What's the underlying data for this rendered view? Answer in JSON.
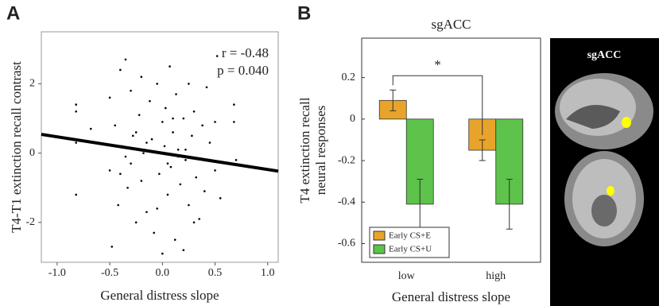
{
  "chart_data": [
    {
      "type": "scatter",
      "panel_label": "A",
      "x_label": "General distress slope",
      "y_label": "T4-T1 extinction recall contrast",
      "annotations": [
        "r = -0.48",
        "p = 0.040"
      ],
      "x": [
        -0.82,
        -0.82,
        -0.82,
        -0.82,
        -0.68,
        -0.5,
        -0.5,
        -0.48,
        -0.45,
        -0.42,
        -0.4,
        -0.38,
        -0.35,
        -0.33,
        -0.3,
        -0.3,
        -0.28,
        -0.25,
        -0.22,
        -0.2,
        -0.2,
        -0.18,
        -0.15,
        -0.12,
        -0.1,
        -0.08,
        -0.05,
        -0.03,
        0,
        0,
        0.02,
        0.03,
        0.05,
        0.07,
        0.08,
        0.1,
        0.12,
        0.13,
        0.15,
        0.17,
        0.2,
        0.2,
        0.22,
        0.25,
        0.25,
        0.28,
        0.3,
        0.32,
        0.35,
        0.38,
        0.4,
        0.42,
        0.45,
        0.5,
        0.5,
        0.52,
        0.55,
        0.68,
        0.68,
        0.7,
        -0.35,
        -0.15,
        0.05,
        0.1,
        -0.05,
        0.15,
        -0.25,
        0.3,
        -0.4,
        0.22
      ],
      "y": [
        1.4,
        1.2,
        0.3,
        -1.2,
        0.7,
        1.6,
        -0.5,
        -2.7,
        0.8,
        -1.5,
        2.4,
        0.2,
        2.7,
        -1.0,
        1.8,
        -0.3,
        0.5,
        -2.0,
        1.1,
        2.2,
        -0.8,
        0.0,
        -1.7,
        1.5,
        0.4,
        -2.3,
        2.0,
        -0.6,
        0.9,
        -2.9,
        0.2,
        1.3,
        -1.2,
        2.5,
        -0.4,
        0.6,
        -2.5,
        1.7,
        0.1,
        -0.9,
        1.0,
        -2.8,
        -0.2,
        2.0,
        -1.5,
        0.5,
        1.2,
        -0.7,
        -1.9,
        0.8,
        -1.1,
        1.9,
        0.3,
        -0.5,
        0.9,
        2.8,
        -1.3,
        1.4,
        0.9,
        -0.2,
        -0.1,
        0.3,
        -0.3,
        1.0,
        -1.6,
        -0.1,
        0.6,
        -2.0,
        -0.6,
        0.1
      ],
      "color": "#000000",
      "fit": {
        "x": [
          -1.15,
          1.1
        ],
        "y": [
          0.54,
          -0.52
        ]
      },
      "xlim": [
        -1.15,
        1.1
      ],
      "ylim": [
        -3.15,
        3.5
      ],
      "xticks": [
        {
          "value": -1,
          "label": "-1.0"
        },
        -0.5,
        {
          "value": 0,
          "label": "0.0"
        },
        0.5,
        {
          "value": 1,
          "label": "1.0"
        }
      ],
      "yticks": [
        -2,
        0,
        2
      ]
    },
    {
      "type": "bar",
      "panel_label": "B",
      "title": "sgACC",
      "x_label": "General distress slope",
      "y_label": [
        "T4 extinction recall",
        "neural responses"
      ],
      "categories": [
        "low",
        "high"
      ],
      "series": [
        {
          "name": "Early CS+E",
          "color": "#e8a42a",
          "values": [
            0.09,
            -0.15
          ],
          "errors": [
            0.05,
            0.05
          ]
        },
        {
          "name": "Early CS+U",
          "color": "#5dc34a",
          "values": [
            -0.41,
            -0.41
          ],
          "errors": [
            0.12,
            0.12
          ]
        }
      ],
      "significance": "*",
      "ylim": [
        -0.69,
        0.39
      ],
      "yticks": [
        0.2,
        0,
        -0.2,
        -0.4,
        -0.6
      ],
      "legend": "lower left"
    }
  ],
  "image": {
    "label": "sgACC"
  }
}
